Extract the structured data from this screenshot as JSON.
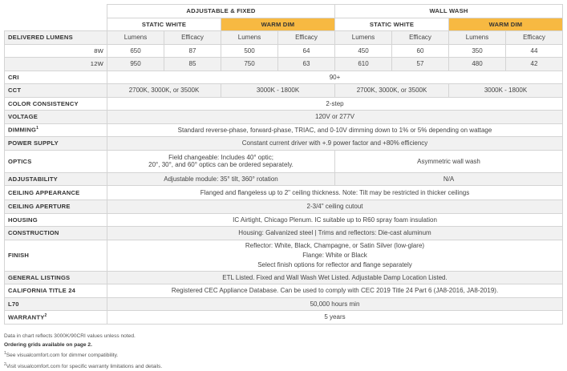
{
  "header": {
    "group1": "ADJUSTABLE & FIXED",
    "group2": "WALL WASH",
    "static": "STATIC WHITE",
    "warm": "WARM DIM",
    "lumens": "Lumens",
    "efficacy": "Efficacy"
  },
  "colors": {
    "warm_dim": "#f7b942",
    "row_alt": "#f1f1f1"
  },
  "lumens": {
    "label": "DELIVERED LUMENS",
    "rows": [
      {
        "w": "8W",
        "v": [
          "650",
          "87",
          "500",
          "64",
          "450",
          "60",
          "350",
          "44"
        ]
      },
      {
        "w": "12W",
        "v": [
          "950",
          "85",
          "750",
          "63",
          "610",
          "57",
          "480",
          "42"
        ]
      }
    ]
  },
  "specs": {
    "cri": {
      "label": "CRI",
      "value": "90+"
    },
    "cct": {
      "label": "CCT",
      "a": "2700K, 3000K, or 3500K",
      "b": "3000K - 1800K",
      "c": "2700K, 3000K, or 3500K",
      "d": "3000K - 1800K"
    },
    "color": {
      "label": "COLOR CONSISTENCY",
      "value": "2-step"
    },
    "voltage": {
      "label": "VOLTAGE",
      "value": "120V or 277V"
    },
    "dimming": {
      "label": "DIMMING",
      "sup": "1",
      "value": "Standard reverse-phase, forward-phase, TRIAC, and 0-10V dimming down to 1% or 5% depending on wattage"
    },
    "power": {
      "label": "POWER SUPPLY",
      "value": "Constant current driver with +.9 power factor and +80% efficiency"
    },
    "optics": {
      "label": "OPTICS",
      "a1": "Field changeable: Includes 40° optic;",
      "a2": "20°,  30°, and 60° optics can be ordered separately.",
      "b": "Asymmetric wall wash"
    },
    "adjust": {
      "label": "ADJUSTABILITY",
      "a": "Adjustable module: 35° tilt, 360° rotation",
      "b": "N/A"
    },
    "ceiling": {
      "label": "CEILING APPEARANCE",
      "value": "Flanged and flangeless up to 2\" ceiling thickness. Note: Tilt may be restricted in thicker ceilings"
    },
    "aperture": {
      "label": "CEILING APERTURE",
      "value": "2-3/4\" ceiling cutout"
    },
    "housing": {
      "label": "HOUSING",
      "value": "IC Airtight, Chicago Plenum. IC suitable up to R60 spray foam insulation"
    },
    "construction": {
      "label": "CONSTRUCTION",
      "value": "Housing: Galvanized steel | Trims and reflectors: Die-cast aluminum"
    },
    "finish": {
      "label": "FINISH",
      "l1": "Reflector: White, Black, Champagne, or Satin Silver (low-glare)",
      "l2": "Flange: White or Black",
      "l3": "Select finish options for reflector and flange separately"
    },
    "listings": {
      "label": "GENERAL LISTINGS",
      "value": "ETL Listed. Fixed and Wall Wash Wet Listed. Adjustable Damp Location Listed."
    },
    "title24": {
      "label": "CALIFORNIA TITLE 24",
      "value": "Registered CEC Appliance Database. Can be used to comply with CEC 2019 Title 24 Part 6 (JA8-2016, JA8-2019)."
    },
    "l70": {
      "label": "L70",
      "value": "50,000 hours min"
    },
    "warranty": {
      "label": "WARRANTY",
      "sup": "2",
      "value": "5 years"
    }
  },
  "notes": {
    "n1": "Data in chart reflects 3000K/90CRI values unless noted.",
    "n2": "Ordering grids available on page 2.",
    "s1": "1",
    "n3": "See visualcomfort.com for dimmer compatibility.",
    "s2": "2",
    "n4": "Visit visualcomfort.com for specific warranty limitations and details."
  }
}
